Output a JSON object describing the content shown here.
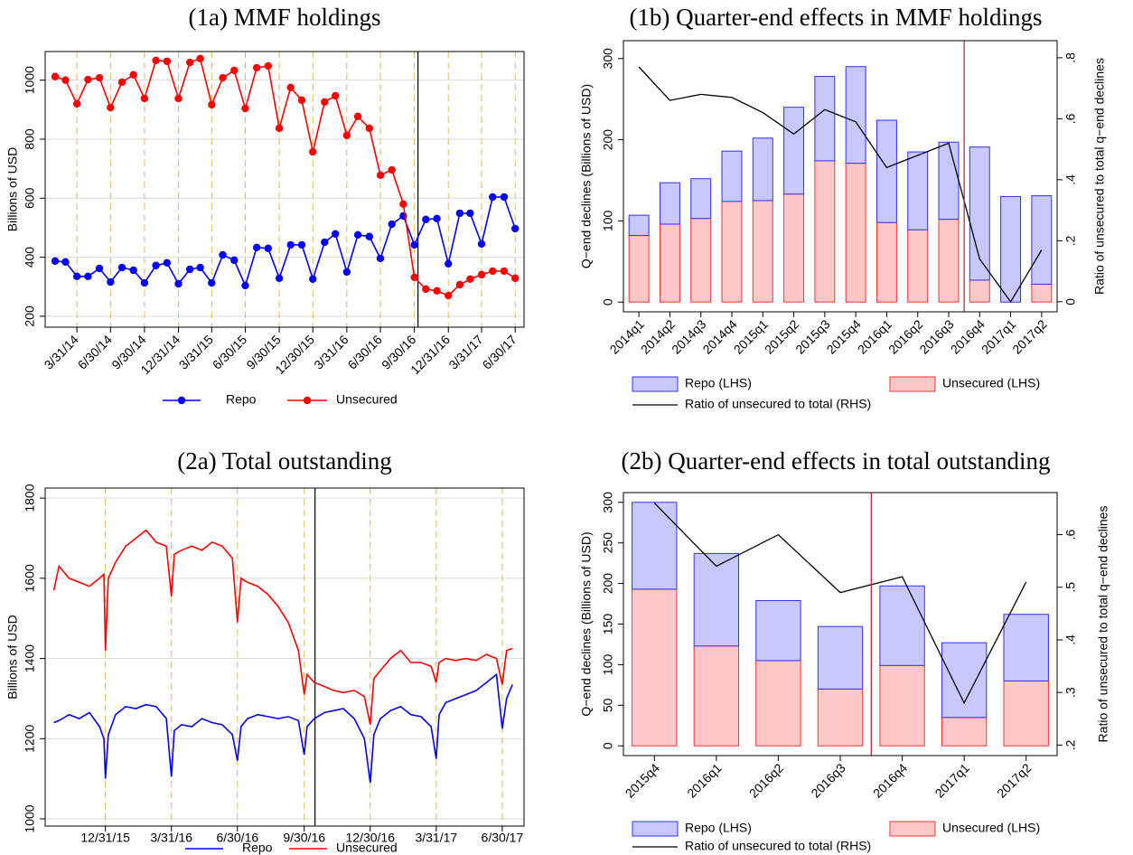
{
  "chart_data": [
    {
      "type": "line",
      "title": "(1a) MMF holdings",
      "ylabel": "Billions of USD",
      "x": [
        "1/31/14",
        "2/28/14",
        "3/31/14",
        "4/30/14",
        "5/31/14",
        "6/30/14",
        "7/31/14",
        "8/31/14",
        "9/30/14",
        "10/31/14",
        "11/30/14",
        "12/31/14",
        "1/31/15",
        "2/28/15",
        "3/31/15",
        "4/30/15",
        "5/31/15",
        "6/30/15",
        "7/31/15",
        "8/31/15",
        "9/30/15",
        "10/31/15",
        "11/30/15",
        "12/30/15",
        "1/31/16",
        "2/29/16",
        "3/31/16",
        "4/30/16",
        "5/31/16",
        "6/30/16",
        "7/31/16",
        "8/31/16",
        "9/30/16",
        "10/31/16",
        "11/30/16",
        "12/31/16",
        "1/31/17",
        "2/28/17",
        "3/31/17",
        "4/30/17",
        "5/31/17",
        "6/30/17"
      ],
      "series": [
        {
          "name": "Repo",
          "color": "#0000ff",
          "marker": true,
          "values": [
            387,
            384,
            335,
            335,
            362,
            316,
            365,
            356,
            313,
            372,
            381,
            310,
            359,
            365,
            313,
            408,
            390,
            304,
            433,
            430,
            329,
            442,
            442,
            326,
            451,
            479,
            350,
            476,
            470,
            396,
            512,
            540,
            442,
            528,
            531,
            378,
            549,
            549,
            445,
            604,
            604,
            497
          ]
        },
        {
          "name": "Unsecured",
          "color": "#ff0000",
          "marker": true,
          "values": [
            1012,
            1000,
            920,
            1002,
            1008,
            907,
            993,
            1018,
            938,
            1067,
            1064,
            938,
            1060,
            1073,
            917,
            1008,
            1033,
            904,
            1042,
            1048,
            837,
            975,
            932,
            757,
            926,
            947,
            813,
            877,
            837,
            678,
            696,
            580,
            332,
            292,
            286,
            270,
            307,
            326,
            341,
            353,
            353,
            329
          ]
        }
      ],
      "xlim": [
        "1/4/14",
        "7/24/17"
      ],
      "xticks": [
        "3/31/14",
        "6/30/14",
        "9/30/14",
        "12/31/14",
        "3/31/15",
        "6/30/15",
        "9/30/15",
        "12/30/15",
        "3/31/16",
        "6/30/16",
        "9/30/16",
        "12/31/16",
        "3/31/17",
        "6/30/17"
      ],
      "ylim": [
        163,
        1097
      ],
      "yticks": [
        200,
        400,
        600,
        800,
        1000
      ],
      "grid": true
    },
    {
      "type": "bar",
      "stacked": true,
      "title": "(1b) Quarter-end effects in MMF holdings",
      "ylabel": "Q−end declines (Billions of USD)",
      "y2label": "Ratio of unsecured to total q−end declines",
      "categories": [
        "2014q1",
        "2014q2",
        "2014q3",
        "2014q4",
        "2015q1",
        "2015q2",
        "2015q3",
        "2015q4",
        "2016q1",
        "2016q2",
        "2016q3",
        "2016q4",
        "2017q1",
        "2017q2"
      ],
      "series": [
        {
          "name": "Repo (LHS)",
          "color": "#c8c8ff",
          "edgecolor": "#3030ff",
          "values": [
            25,
            51,
            49,
            62,
            77,
            107,
            104,
            119,
            126,
            96,
            95,
            164,
            130,
            109
          ]
        },
        {
          "name": "Unsecured (LHS)",
          "color": "#ffc8c8",
          "edgecolor": "#ff3030",
          "values": [
            82,
            96,
            103,
            124,
            125,
            133,
            174,
            171,
            98,
            89,
            102,
            27,
            0,
            22
          ]
        },
        {
          "name": "Ratio of unsecured to total (RHS)",
          "type": "line",
          "axis": "y2",
          "color": "#000000",
          "values": [
            0.77,
            0.66,
            0.68,
            0.67,
            0.62,
            0.55,
            0.63,
            0.59,
            0.44,
            0.48,
            0.52,
            0.14,
            0,
            0.17
          ]
        }
      ],
      "ylim": [
        -12,
        322
      ],
      "yticks": [
        0,
        100,
        200,
        300
      ],
      "y2lim": [
        -0.033,
        0.856
      ],
      "y2ticks": [
        0,
        {
          "value": 0.2,
          "label": ".2"
        },
        {
          "value": 0.4,
          "label": ".4"
        },
        {
          "value": 0.6,
          "label": ".6"
        },
        {
          "value": 0.8,
          "label": ".8"
        }
      ]
    },
    {
      "type": "line",
      "title": "(2a) Total outstanding",
      "ylabel": "Billions of USD",
      "x": [
        "10/21/15",
        "10/28/15",
        "11/11/15",
        "11/25/15",
        "12/9/15",
        "12/23/15",
        "12/29/15",
        "12/31/15",
        "1/4/16",
        "1/14/16",
        "1/28/16",
        "2/11/16",
        "2/25/16",
        "3/10/16",
        "3/24/16",
        "3/31/16",
        "4/4/16",
        "4/14/16",
        "4/28/16",
        "5/12/16",
        "5/26/16",
        "6/9/16",
        "6/23/16",
        "6/30/16",
        "7/5/16",
        "7/14/16",
        "7/28/16",
        "8/11/16",
        "8/25/16",
        "9/8/16",
        "9/22/16",
        "9/30/16",
        "10/4/16",
        "10/14/16",
        "10/28/16",
        "11/10/16",
        "11/23/16",
        "12/8/16",
        "12/22/16",
        "12/30/16",
        "1/4/17",
        "1/13/17",
        "1/27/17",
        "2/10/17",
        "2/24/17",
        "3/10/17",
        "3/24/17",
        "3/31/17",
        "4/4/17",
        "4/13/17",
        "4/27/17",
        "5/11/17",
        "5/25/17",
        "6/8/17",
        "6/22/17",
        "6/30/17",
        "7/6/17",
        "7/14/17"
      ],
      "series": [
        {
          "name": "Repo",
          "color": "#0000ff",
          "values": [
            1240,
            1245,
            1260,
            1250,
            1265,
            1230,
            1200,
            1100,
            1210,
            1260,
            1280,
            1275,
            1285,
            1280,
            1250,
            1105,
            1220,
            1235,
            1230,
            1250,
            1240,
            1235,
            1210,
            1145,
            1230,
            1250,
            1260,
            1255,
            1250,
            1255,
            1245,
            1160,
            1230,
            1250,
            1265,
            1270,
            1275,
            1250,
            1200,
            1090,
            1210,
            1250,
            1270,
            1280,
            1260,
            1255,
            1230,
            1150,
            1260,
            1290,
            1300,
            1310,
            1320,
            1340,
            1360,
            1225,
            1300,
            1335
          ]
        },
        {
          "name": "Unsecured",
          "color": "#ff0000",
          "values": [
            1570,
            1630,
            1600,
            1590,
            1580,
            1600,
            1610,
            1420,
            1600,
            1640,
            1680,
            1700,
            1720,
            1690,
            1680,
            1555,
            1660,
            1670,
            1680,
            1670,
            1690,
            1680,
            1650,
            1490,
            1600,
            1590,
            1580,
            1560,
            1530,
            1490,
            1420,
            1310,
            1360,
            1340,
            1330,
            1320,
            1315,
            1320,
            1305,
            1235,
            1350,
            1370,
            1400,
            1420,
            1390,
            1390,
            1380,
            1340,
            1390,
            1400,
            1395,
            1400,
            1395,
            1410,
            1400,
            1335,
            1420,
            1425
          ]
        }
      ],
      "xlim": [
        "10/9/15",
        "7/30/17"
      ],
      "xticks": [
        "12/31/15",
        "3/31/16",
        "6/30/16",
        "9/30/16",
        "12/30/16",
        "3/31/17",
        "6/30/17"
      ],
      "ylim": [
        982,
        1825
      ],
      "yticks": [
        1000,
        1200,
        1400,
        1600,
        1800
      ],
      "grid": true
    },
    {
      "type": "bar",
      "stacked": true,
      "title": "(2b) Quarter-end effects in total outstanding",
      "ylabel": "Q−end declines (Billions of USD)",
      "y2label": "Ratio of unsecured to total q−end declines",
      "categories": [
        "2015q4",
        "2016q1",
        "2016q2",
        "2016q3",
        "2016q4",
        "2017q1",
        "2017q2"
      ],
      "series": [
        {
          "name": "Repo (LHS)",
          "color": "#c8c8ff",
          "edgecolor": "#3030ff",
          "values": [
            107,
            114,
            74,
            77,
            98,
            92,
            82
          ]
        },
        {
          "name": "Unsecured (LHS)",
          "color": "#ffc8c8",
          "edgecolor": "#ff3030",
          "values": [
            193,
            123,
            105,
            70,
            99,
            35,
            80
          ]
        },
        {
          "name": "Ratio of unsecured to total (RHS)",
          "type": "line",
          "axis": "y2",
          "color": "#000000",
          "values": [
            0.66,
            0.54,
            0.6,
            0.49,
            0.52,
            0.28,
            0.51
          ]
        }
      ],
      "ylim": [
        -12,
        312
      ],
      "yticks": [
        0,
        50,
        100,
        150,
        200,
        250,
        300
      ],
      "y2lim": [
        0.18,
        0.68
      ],
      "y2ticks": [
        {
          "value": 0.2,
          "label": ".2"
        },
        {
          "value": 0.3,
          "label": ".3"
        },
        {
          "value": 0.4,
          "label": ".4"
        },
        {
          "value": 0.5,
          "label": ".5"
        },
        {
          "value": 0.6,
          "label": ".6"
        }
      ]
    }
  ]
}
